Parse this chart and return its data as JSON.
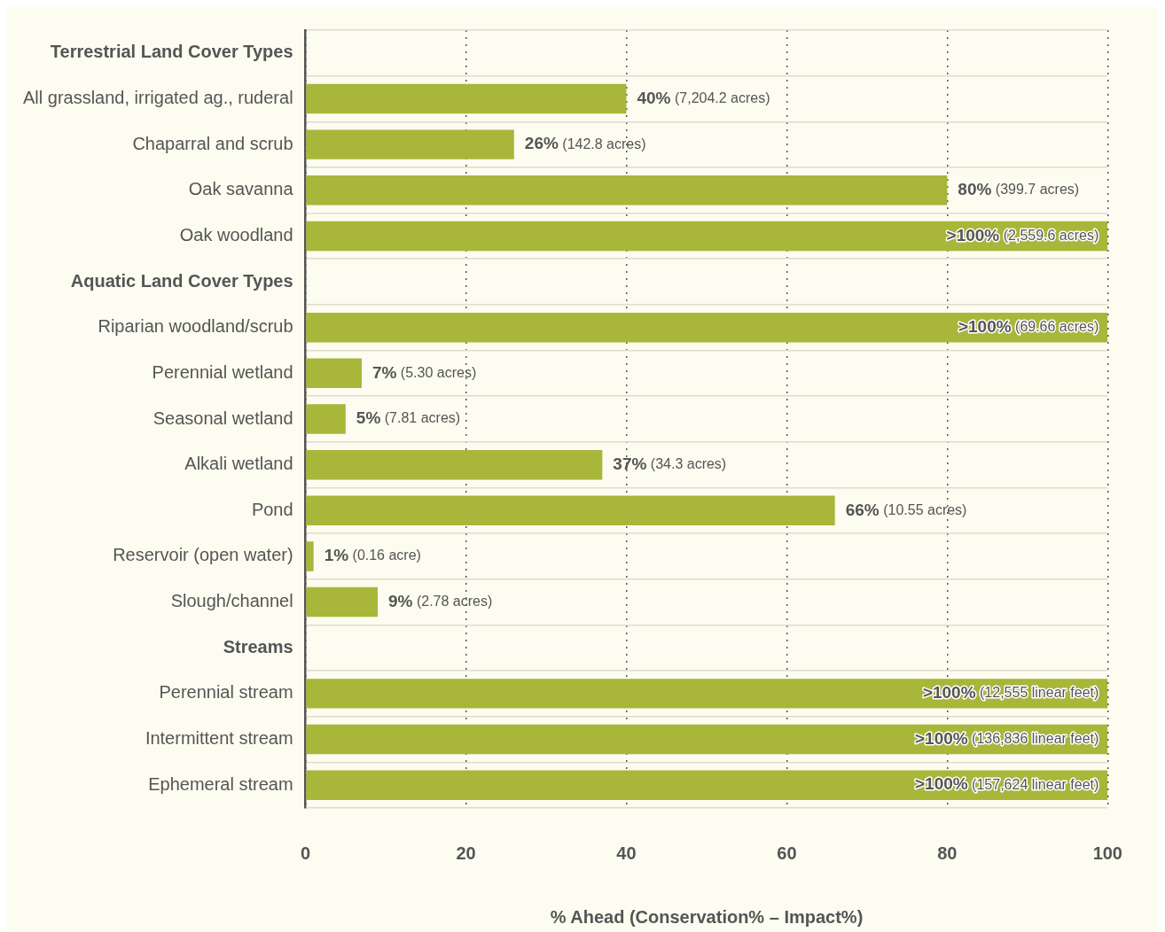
{
  "chart_data": {
    "type": "bar",
    "orientation": "horizontal",
    "xlabel": "% Ahead (Conservation% – Impact%)",
    "categories": [
      "Terrestrial Land Cover Types",
      "All grassland, irrigated ag., ruderal",
      "Chaparral and scrub",
      "Oak savanna",
      "Oak woodland",
      "Aquatic Land Cover Types",
      "Riparian woodland/scrub",
      "Perennial wetland",
      "Seasonal wetland",
      "Alkali wetland",
      "Pond",
      "Reservoir (open water)",
      "Slough/channel",
      "Streams",
      "Perennial stream",
      "Intermittent stream",
      "Ephemeral stream"
    ],
    "values": [
      null,
      40,
      26,
      80,
      100,
      null,
      100,
      7,
      5,
      37,
      66,
      1,
      9,
      null,
      100,
      100,
      100
    ],
    "value_labels": [
      null,
      "40% (7,204.2 acres)",
      "26% (142.8 acres)",
      "80% (399.7 acres)",
      ">100% (2,559.6 acres)",
      null,
      ">100% (69.66 acres)",
      "7% (5.30 acres)",
      "5% (7.81 acres)",
      "37% (34.3 acres)",
      "66% (10.55 acres)",
      "1% (0.16 acre)",
      "9% (2.78 acres)",
      null,
      ">100% (12,555 linear feet)",
      ">100% (136,836 linear feet)",
      ">100% (157,624 linear feet)"
    ],
    "color": "#a8b63a",
    "xlim": [
      0,
      100
    ],
    "xticks": [
      0,
      20,
      40,
      60,
      80,
      100
    ],
    "grid": true,
    "legend": false
  }
}
